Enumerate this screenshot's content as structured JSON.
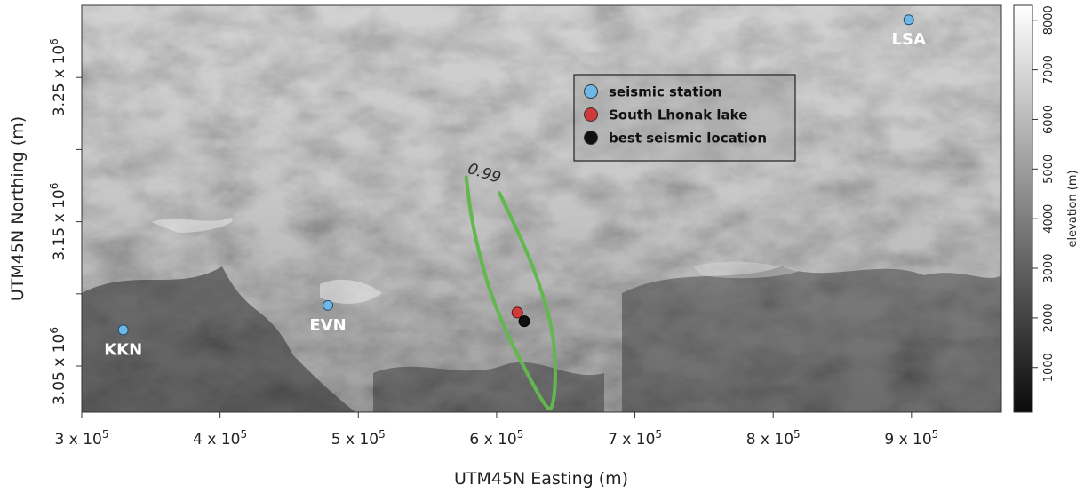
{
  "axes": {
    "xlabel": "UTM45N Easting (m)",
    "ylabel": "UTM45N Northing (m)",
    "x_ticks": [
      {
        "value": 300000,
        "base": "3 x 10",
        "exp": "5"
      },
      {
        "value": 400000,
        "base": "4 x 10",
        "exp": "5"
      },
      {
        "value": 500000,
        "base": "5 x 10",
        "exp": "5"
      },
      {
        "value": 600000,
        "base": "6 x 10",
        "exp": "5"
      },
      {
        "value": 700000,
        "base": "7 x 10",
        "exp": "5"
      },
      {
        "value": 800000,
        "base": "8 x 10",
        "exp": "5"
      },
      {
        "value": 900000,
        "base": "9 x 10",
        "exp": "5"
      }
    ],
    "y_ticks": [
      {
        "value": 3050000,
        "base": "3.05 x 10",
        "exp": "6"
      },
      {
        "value": 3150000,
        "base": "3.15 x 10",
        "exp": "6"
      },
      {
        "value": 3250000,
        "base": "3.25 x 10",
        "exp": "6"
      }
    ],
    "y_extra_ticks": [
      3100000,
      3200000
    ],
    "xlim": [
      300000,
      965000
    ],
    "ylim": [
      3018000,
      3300000
    ]
  },
  "colorbar": {
    "label": "elevation (m)",
    "ticks": [
      "1000",
      "2000",
      "3000",
      "4000",
      "5000",
      "6000",
      "7000",
      "8000"
    ],
    "tick_values": [
      1000,
      2000,
      3000,
      4000,
      5000,
      6000,
      7000,
      8000
    ],
    "range": [
      100,
      8300
    ]
  },
  "stations": [
    {
      "label": "LSA",
      "x": 898000,
      "y": 3290000
    },
    {
      "label": "EVN",
      "x": 478000,
      "y": 3092000
    },
    {
      "label": "KKN",
      "x": 330000,
      "y": 3075000
    }
  ],
  "lake": {
    "x": 615000,
    "y": 3087000
  },
  "best_location": {
    "x": 620000,
    "y": 3081000
  },
  "contour": {
    "label": "0.99",
    "points": [
      [
        578000,
        3181000
      ],
      [
        582000,
        3150000
      ],
      [
        592000,
        3110000
      ],
      [
        606000,
        3075000
      ],
      [
        622000,
        3045000
      ],
      [
        634000,
        3024000
      ],
      [
        640000,
        3018000
      ],
      [
        643000,
        3040000
      ],
      [
        641000,
        3075000
      ],
      [
        630000,
        3110000
      ],
      [
        617000,
        3140000
      ],
      [
        602000,
        3170000
      ]
    ]
  },
  "legend": {
    "items": [
      {
        "label": "seismic station",
        "color": "#6fb8e6"
      },
      {
        "label": "South Lhonak lake",
        "color": "#cf3a3a"
      },
      {
        "label": "best seismic location",
        "color": "#111111"
      }
    ]
  },
  "colors": {
    "station": "#6fb8e6",
    "lake": "#cf3a3a",
    "best": "#111111",
    "contour": "#62b84e"
  }
}
